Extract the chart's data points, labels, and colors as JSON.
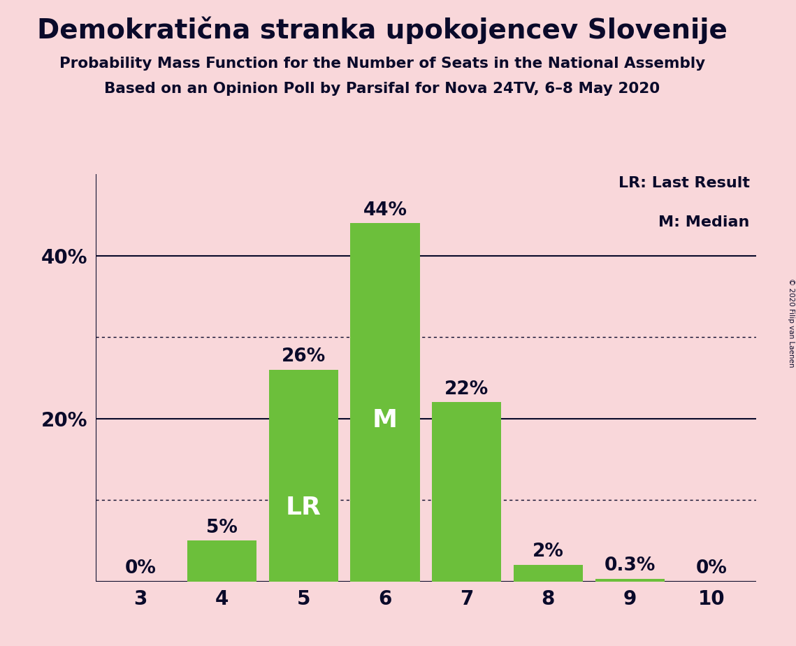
{
  "title": "Demokratična stranka upokojencev Slovenije",
  "subtitle1": "Probability Mass Function for the Number of Seats in the National Assembly",
  "subtitle2": "Based on an Opinion Poll by Parsifal for Nova 24TV, 6–8 May 2020",
  "copyright": "© 2020 Filip van Laenen",
  "categories": [
    3,
    4,
    5,
    6,
    7,
    8,
    9,
    10
  ],
  "values": [
    0.0,
    5.0,
    26.0,
    44.0,
    22.0,
    2.0,
    0.3,
    0.0
  ],
  "bar_labels": [
    "0%",
    "5%",
    "26%",
    "44%",
    "22%",
    "2%",
    "0.3%",
    "0%"
  ],
  "bar_color": "#6cbf3b",
  "background_color": "#f9d7da",
  "text_color": "#0a0a2a",
  "lr_bar": 5,
  "median_bar": 6,
  "lr_label": "LR",
  "median_label": "M",
  "legend_lr": "LR: Last Result",
  "legend_m": "M: Median",
  "yticks": [
    20,
    40
  ],
  "ytick_labels": [
    "20%",
    "40%"
  ],
  "ylim": [
    0,
    50
  ],
  "dotted_lines": [
    10,
    30
  ],
  "solid_lines": [
    20,
    40
  ]
}
